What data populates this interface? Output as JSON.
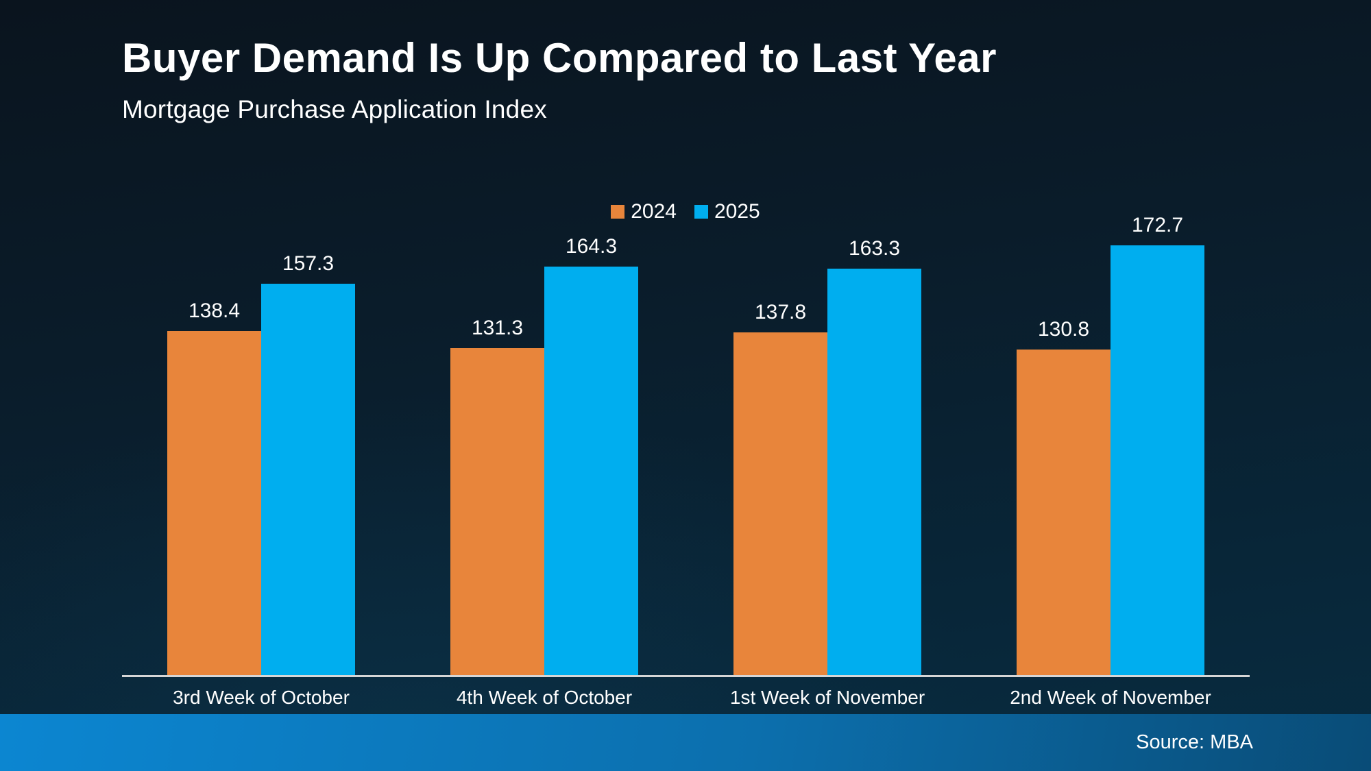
{
  "header": {
    "title": "Buyer Demand Is Up Compared to Last Year",
    "subtitle": "Mortgage Purchase Application Index"
  },
  "footer": {
    "source": "Source: MBA"
  },
  "chart_data": {
    "type": "bar",
    "title": "Buyer Demand Is Up Compared to Last Year",
    "subtitle": "Mortgage Purchase Application Index",
    "categories": [
      "3rd Week of October",
      "4th Week of October",
      "1st Week of November",
      "2nd Week of November"
    ],
    "series": [
      {
        "name": "2024",
        "color": "#E8853B",
        "values": [
          138.4,
          131.3,
          137.8,
          130.8
        ]
      },
      {
        "name": "2025",
        "color": "#00AEEF",
        "values": [
          157.3,
          164.3,
          163.3,
          172.7
        ]
      }
    ],
    "ylim": [
      0,
      180
    ],
    "grid": false,
    "value_labels": true,
    "legend_position": "top-center",
    "xlabel": "",
    "ylabel": "",
    "axis_line_color": "#D6D6D6"
  },
  "colors": {
    "background_top": "#0A141E",
    "background_bottom": "#072C41",
    "footer_left": "#0C86D1",
    "footer_right": "#094C77",
    "text": "#FFFFFF",
    "series_2024": "#E8853B",
    "series_2025": "#00AEEF"
  }
}
